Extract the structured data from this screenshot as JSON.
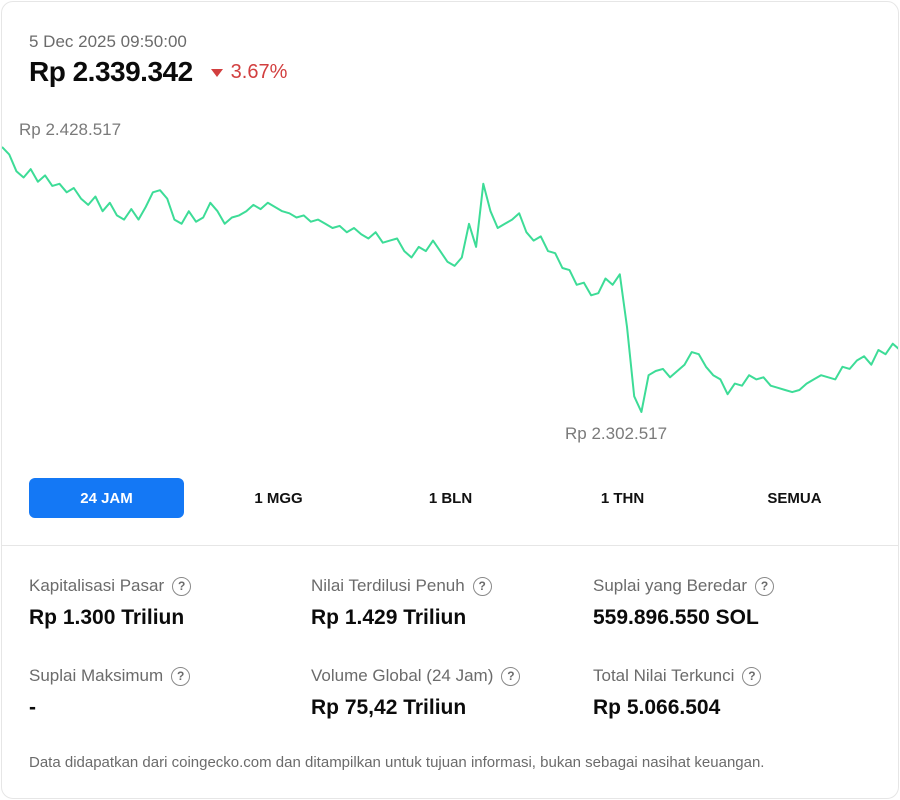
{
  "header": {
    "timestamp": "5 Dec 2025 09:50:00",
    "price": "Rp 2.339.342",
    "change": "3.67%",
    "change_direction": "down",
    "change_color": "#d23f3f"
  },
  "chart_data": {
    "type": "line",
    "high_label": "Rp 2.428.517",
    "low_label": "Rp 2.302.517",
    "high": 2428517,
    "low": 2302517,
    "line_color": "#3ddc97",
    "grid": false,
    "values": [
      2428517,
      2425000,
      2417000,
      2414000,
      2418000,
      2412000,
      2415000,
      2410000,
      2411000,
      2407000,
      2409000,
      2404000,
      2401000,
      2405000,
      2398000,
      2402000,
      2396000,
      2394000,
      2399000,
      2394000,
      2400000,
      2407000,
      2408000,
      2404000,
      2394000,
      2392000,
      2398000,
      2393000,
      2395000,
      2402000,
      2398000,
      2392000,
      2395000,
      2396000,
      2398000,
      2401000,
      2399000,
      2402000,
      2400000,
      2398000,
      2397000,
      2395000,
      2396000,
      2393000,
      2394000,
      2392000,
      2390000,
      2391000,
      2388000,
      2390000,
      2387000,
      2385000,
      2388000,
      2383000,
      2384000,
      2385000,
      2379000,
      2376000,
      2381000,
      2379000,
      2384000,
      2379000,
      2374000,
      2372000,
      2376000,
      2392000,
      2381000,
      2411000,
      2398000,
      2390000,
      2392000,
      2394000,
      2397000,
      2388000,
      2384000,
      2386000,
      2379000,
      2378000,
      2371000,
      2370000,
      2363000,
      2364000,
      2358000,
      2359000,
      2366000,
      2363000,
      2368000,
      2343000,
      2310000,
      2302517,
      2320000,
      2322000,
      2323000,
      2319000,
      2322000,
      2325000,
      2331000,
      2330000,
      2324000,
      2320000,
      2318000,
      2311000,
      2316000,
      2315000,
      2320000,
      2318000,
      2319000,
      2315000,
      2314000,
      2313000,
      2312000,
      2313000,
      2316000,
      2318000,
      2320000,
      2319000,
      2318000,
      2324000,
      2323000,
      2327000,
      2329000,
      2325000,
      2332000,
      2330000,
      2335000,
      2332000
    ]
  },
  "tabs": [
    {
      "label": "24 JAM",
      "active": true
    },
    {
      "label": "1 MGG",
      "active": false
    },
    {
      "label": "1 BLN",
      "active": false
    },
    {
      "label": "1 THN",
      "active": false
    },
    {
      "label": "SEMUA",
      "active": false
    }
  ],
  "stats": [
    {
      "label": "Kapitalisasi Pasar",
      "value": "Rp 1.300 Triliun"
    },
    {
      "label": "Nilai Terdilusi Penuh",
      "value": "Rp 1.429 Triliun"
    },
    {
      "label": "Suplai yang Beredar",
      "value": "559.896.550 SOL"
    },
    {
      "label": "Suplai Maksimum",
      "value": "-"
    },
    {
      "label": "Volume Global (24 Jam)",
      "value": "Rp 75,42 Triliun"
    },
    {
      "label": "Total Nilai Terkunci",
      "value": "Rp 5.066.504"
    }
  ],
  "help_glyph": "?",
  "accent_color": "#1478f5",
  "footnote": "Data didapatkan dari coingecko.com dan ditampilkan untuk tujuan informasi, bukan sebagai nasihat keuangan."
}
